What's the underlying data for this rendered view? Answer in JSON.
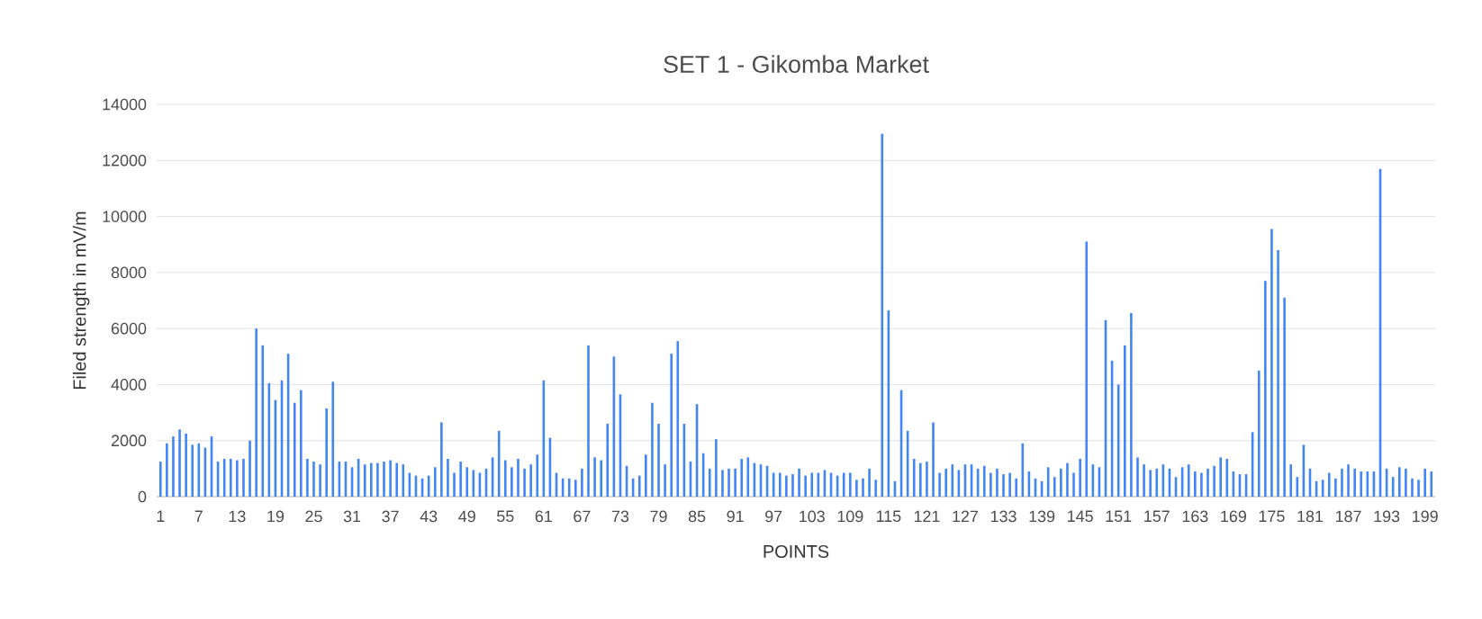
{
  "chart_data": {
    "type": "bar",
    "title": "SET 1 - Gikomba Market",
    "xlabel": "POINTS",
    "ylabel": "Filed strength in mV/m",
    "categories": [
      "1",
      null,
      null,
      null,
      null,
      null,
      "7",
      null,
      null,
      null,
      null,
      null,
      "13",
      null,
      null,
      null,
      null,
      null,
      "19",
      null,
      null,
      null,
      null,
      null,
      "25",
      null,
      null,
      null,
      null,
      null,
      "31",
      null,
      null,
      null,
      null,
      null,
      "37",
      null,
      null,
      null,
      null,
      null,
      "43",
      null,
      null,
      null,
      null,
      null,
      "49",
      null,
      null,
      null,
      null,
      null,
      "55",
      null,
      null,
      null,
      null,
      null,
      "61",
      null,
      null,
      null,
      null,
      null,
      "67",
      null,
      null,
      null,
      null,
      null,
      "73",
      null,
      null,
      null,
      null,
      null,
      "79",
      null,
      null,
      null,
      null,
      null,
      "85",
      null,
      null,
      null,
      null,
      null,
      "91",
      null,
      null,
      null,
      null,
      null,
      "97",
      null,
      null,
      null,
      null,
      null,
      "103",
      null,
      null,
      null,
      null,
      null,
      "109",
      null,
      null,
      null,
      null,
      null,
      "115",
      null,
      null,
      null,
      null,
      null,
      "121",
      null,
      null,
      null,
      null,
      null,
      "127",
      null,
      null,
      null,
      null,
      null,
      "133",
      null,
      null,
      null,
      null,
      null,
      "139",
      null,
      null,
      null,
      null,
      null,
      "145",
      null,
      null,
      null,
      null,
      null,
      "151",
      null,
      null,
      null,
      null,
      null,
      "157",
      null,
      null,
      null,
      null,
      null,
      "163",
      null,
      null,
      null,
      null,
      null,
      "169",
      null,
      null,
      null,
      null,
      null,
      "175",
      null,
      null,
      null,
      null,
      null,
      "181",
      null,
      null,
      null,
      null,
      null,
      "187",
      null,
      null,
      null,
      null,
      null,
      "193",
      null,
      null,
      null,
      null,
      null,
      "199",
      null
    ],
    "values": [
      1250,
      1900,
      2150,
      2400,
      2250,
      1850,
      1900,
      1750,
      2150,
      1250,
      1350,
      1350,
      1300,
      1350,
      2000,
      6000,
      5400,
      4050,
      3450,
      4150,
      5100,
      3350,
      3800,
      1350,
      1250,
      1150,
      3150,
      4100,
      1250,
      1250,
      1050,
      1350,
      1150,
      1200,
      1200,
      1250,
      1300,
      1200,
      1150,
      850,
      750,
      650,
      750,
      1050,
      2650,
      1350,
      850,
      1250,
      1050,
      950,
      850,
      1000,
      1400,
      2350,
      1300,
      1050,
      1350,
      1000,
      1150,
      1500,
      4150,
      2100,
      850,
      650,
      650,
      600,
      1000,
      5400,
      1400,
      1300,
      2600,
      5000,
      3650,
      1100,
      650,
      750,
      1500,
      3350,
      2600,
      1150,
      5100,
      5550,
      2600,
      1250,
      3300,
      1550,
      1000,
      2050,
      950,
      1000,
      1000,
      1350,
      1400,
      1200,
      1150,
      1100,
      850,
      850,
      750,
      800,
      1000,
      750,
      850,
      850,
      950,
      850,
      750,
      850,
      850,
      600,
      650,
      1000,
      600,
      12950,
      6650,
      550,
      3800,
      2350,
      1350,
      1200,
      1250,
      2650,
      850,
      1000,
      1150,
      950,
      1150,
      1150,
      1000,
      1100,
      850,
      1000,
      800,
      850,
      650,
      1900,
      900,
      650,
      550,
      1050,
      700,
      1000,
      1200,
      850,
      1350,
      9100,
      1150,
      1050,
      6300,
      4850,
      4000,
      5400,
      6550,
      1400,
      1150,
      950,
      1000,
      1150,
      1000,
      700,
      1050,
      1150,
      900,
      850,
      1000,
      1100,
      1400,
      1350,
      900,
      800,
      800,
      2300,
      4500,
      7700,
      9550,
      8800,
      7100,
      1150,
      700,
      1850,
      1000,
      550,
      600,
      850,
      650,
      1000,
      1150,
      1000,
      900,
      900,
      900,
      11700,
      1000,
      700,
      1050,
      1000,
      650,
      600,
      1000,
      900
    ],
    "color": "#4285f4",
    "ylim": [
      0,
      14000
    ],
    "yticks": [
      0,
      2000,
      4000,
      6000,
      8000,
      10000,
      12000,
      14000
    ],
    "grid": "y"
  }
}
